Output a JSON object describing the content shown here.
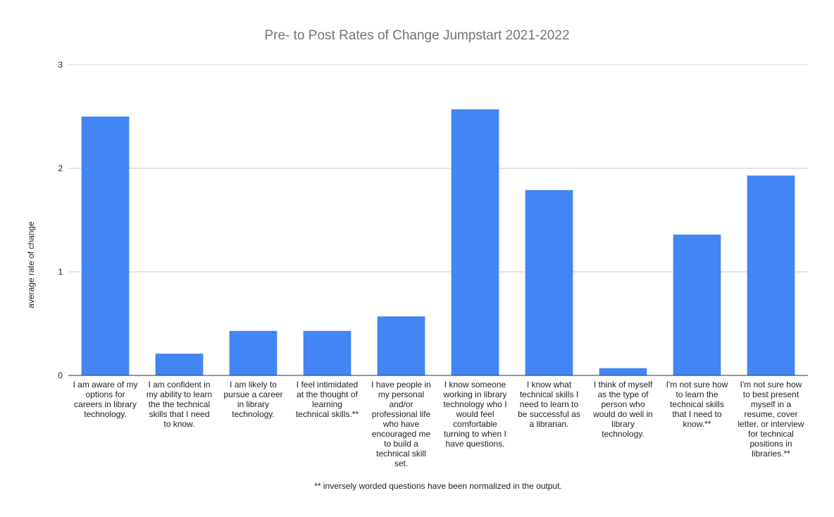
{
  "chart_data": {
    "type": "bar",
    "title": "Pre- to Post Rates of Change Jumpstart 2021-2022",
    "ylabel": "average rate of change",
    "xlabel": "",
    "ylim": [
      0,
      3
    ],
    "yticks": [
      "0",
      "1",
      "2",
      "3"
    ],
    "grid": true,
    "legend": "none",
    "bar_color": "#4285f4",
    "categories": [
      [
        "I am aware of my",
        "options for",
        "careers in library",
        "technology."
      ],
      [
        "I am confident in",
        "my ability to learn",
        "the the technical",
        "skills that I need",
        "to know."
      ],
      [
        "I am likely to",
        "pursue a career",
        "in library",
        "technology."
      ],
      [
        "I feel intimidated",
        "at the thought of",
        "learning",
        "technical skills.**"
      ],
      [
        "I have people in",
        "my personal",
        "and/or",
        "professional life",
        "who have",
        "encouraged me",
        "to build a",
        "technical skill",
        "set."
      ],
      [
        "I know someone",
        "working in library",
        "technology who I",
        "would feel",
        "comfortable",
        "turning to when I",
        "have questions."
      ],
      [
        "I know what",
        "technical skills I",
        "need to learn to",
        "be successful as",
        "a librarian."
      ],
      [
        "I think of myself",
        "as the type of",
        "person who",
        "would do well in",
        "library",
        "technology."
      ],
      [
        "I'm not sure how",
        "to learn the",
        "technical skills",
        "that I need to",
        "know.**"
      ],
      [
        "I'm not sure how",
        "to best present",
        "myself in a",
        "resume, cover",
        "letter, or interview",
        "for technical",
        "positions in",
        "libraries.**"
      ]
    ],
    "values": [
      2.5,
      0.21,
      0.43,
      0.43,
      0.57,
      2.57,
      1.79,
      0.07,
      1.36,
      1.93
    ],
    "footnote": "** inversely worded questions have been normalized in the output."
  }
}
